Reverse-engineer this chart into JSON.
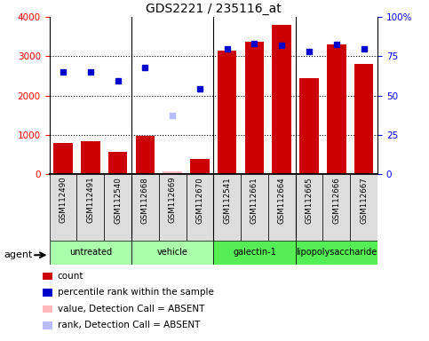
{
  "title": "GDS2221 / 235116_at",
  "samples": [
    "GSM112490",
    "GSM112491",
    "GSM112540",
    "GSM112668",
    "GSM112669",
    "GSM112670",
    "GSM112541",
    "GSM112661",
    "GSM112664",
    "GSM112665",
    "GSM112666",
    "GSM112667"
  ],
  "bar_values": [
    800,
    840,
    560,
    980,
    null,
    380,
    3150,
    3380,
    3800,
    2450,
    3300,
    2800
  ],
  "bar_absent_values": [
    null,
    null,
    null,
    null,
    60,
    null,
    null,
    null,
    null,
    null,
    null,
    null
  ],
  "dot_values": [
    2600,
    2600,
    2380,
    2720,
    null,
    2180,
    3200,
    3320,
    3280,
    3120,
    3300,
    3180
  ],
  "dot_absent_values": [
    null,
    null,
    null,
    null,
    1480,
    null,
    null,
    null,
    null,
    null,
    null,
    null
  ],
  "group_defs": [
    [
      0,
      2,
      "untreated",
      "#aaffaa"
    ],
    [
      3,
      5,
      "vehicle",
      "#aaffaa"
    ],
    [
      6,
      8,
      "galectin-1",
      "#55ee55"
    ],
    [
      9,
      11,
      "lipopolysaccharide",
      "#55ee55"
    ]
  ],
  "bar_color": "#cc0000",
  "bar_absent_color": "#ffbbbb",
  "dot_color": "#0000cc",
  "dot_absent_color": "#bbbbff",
  "ylim_left": [
    0,
    4000
  ],
  "ylim_right": [
    0,
    100
  ],
  "yticks_left": [
    0,
    1000,
    2000,
    3000,
    4000
  ],
  "yticks_right": [
    0,
    25,
    50,
    75,
    100
  ],
  "background_color": "#ffffff",
  "agent_label": "agent",
  "legend_items": [
    [
      "#cc0000",
      "count"
    ],
    [
      "#0000cc",
      "percentile rank within the sample"
    ],
    [
      "#ffbbbb",
      "value, Detection Call = ABSENT"
    ],
    [
      "#bbbbff",
      "rank, Detection Call = ABSENT"
    ]
  ]
}
